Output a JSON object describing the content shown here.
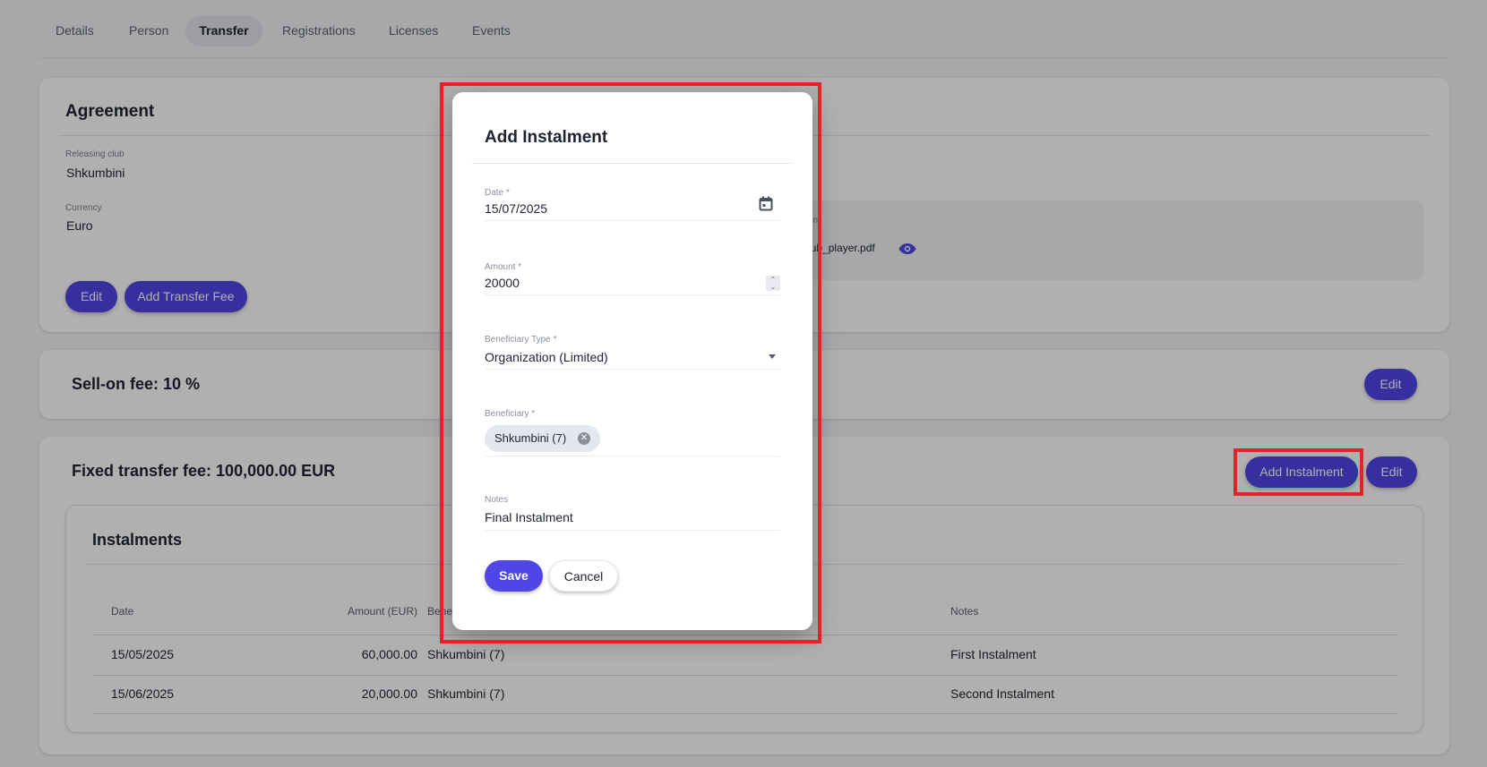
{
  "tabs": [
    {
      "label": "Details"
    },
    {
      "label": "Person"
    },
    {
      "label": "Transfer",
      "active": true
    },
    {
      "label": "Registrations"
    },
    {
      "label": "Licenses"
    },
    {
      "label": "Events"
    }
  ],
  "agreement": {
    "title": "Agreement",
    "releasing_club_label": "Releasing club",
    "releasing_club": "Shkumbini",
    "currency_label": "Currency",
    "currency": "Euro",
    "document_label_partial": "ement",
    "document_file_partial": "club_player.pdf",
    "edit_label": "Edit",
    "add_transfer_fee_label": "Add Transfer Fee"
  },
  "sell_on": {
    "title": "Sell-on fee: 10 %",
    "edit_label": "Edit"
  },
  "fixed_fee": {
    "title": "Fixed transfer fee: 100,000.00 EUR",
    "add_instalment_label": "Add Instalment",
    "edit_label": "Edit",
    "instalments": {
      "title": "Instalments",
      "columns": [
        "Date",
        "Amount (EUR)",
        "Bene",
        "Notes"
      ],
      "rows": [
        {
          "date": "15/05/2025",
          "amount": "60,000.00",
          "beneficiary": "Shkumbini (7)",
          "notes": "First Instalment"
        },
        {
          "date": "15/06/2025",
          "amount": "20,000.00",
          "beneficiary": "Shkumbini (7)",
          "notes": "Second Instalment"
        }
      ]
    }
  },
  "modal": {
    "title": "Add Instalment",
    "date_label": "Date *",
    "date": "15/07/2025",
    "amount_label": "Amount *",
    "amount": "20000",
    "beneficiary_type_label": "Beneficiary Type *",
    "beneficiary_type": "Organization (Limited)",
    "beneficiary_label": "Beneficiary *",
    "beneficiary_chip": "Shkumbini (7)",
    "notes_label": "Notes",
    "notes": "Final Instalment",
    "save_label": "Save",
    "cancel_label": "Cancel"
  },
  "colors": {
    "primary": "#4f46e5",
    "highlight": "#e8202a"
  }
}
